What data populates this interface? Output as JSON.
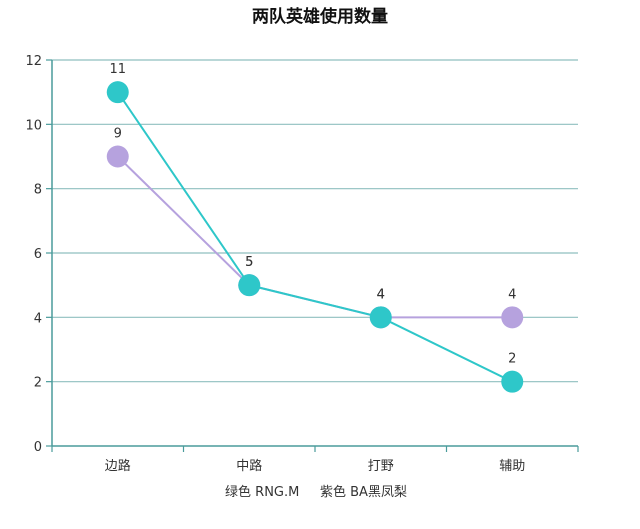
{
  "chart_data": {
    "type": "line",
    "title": "两队英雄使用数量",
    "categories": [
      "边路",
      "中路",
      "打野",
      "辅助"
    ],
    "ylim": [
      0,
      12
    ],
    "yticks": [
      0,
      2,
      4,
      6,
      8,
      10,
      12
    ],
    "grid": true,
    "series": [
      {
        "name": "紫色 BA黑凤梨",
        "values": [
          9,
          5,
          4,
          4
        ],
        "color": "#b6a2de"
      },
      {
        "name": "绿色 RNG.M",
        "values": [
          11,
          5,
          4,
          2
        ],
        "color": "#2ec7c9"
      }
    ],
    "caption": "绿色 RNG.M     紫色 BA黑凤梨",
    "colors": {
      "grid": "#8fbfbf",
      "axis": "#4a9b9b"
    }
  }
}
